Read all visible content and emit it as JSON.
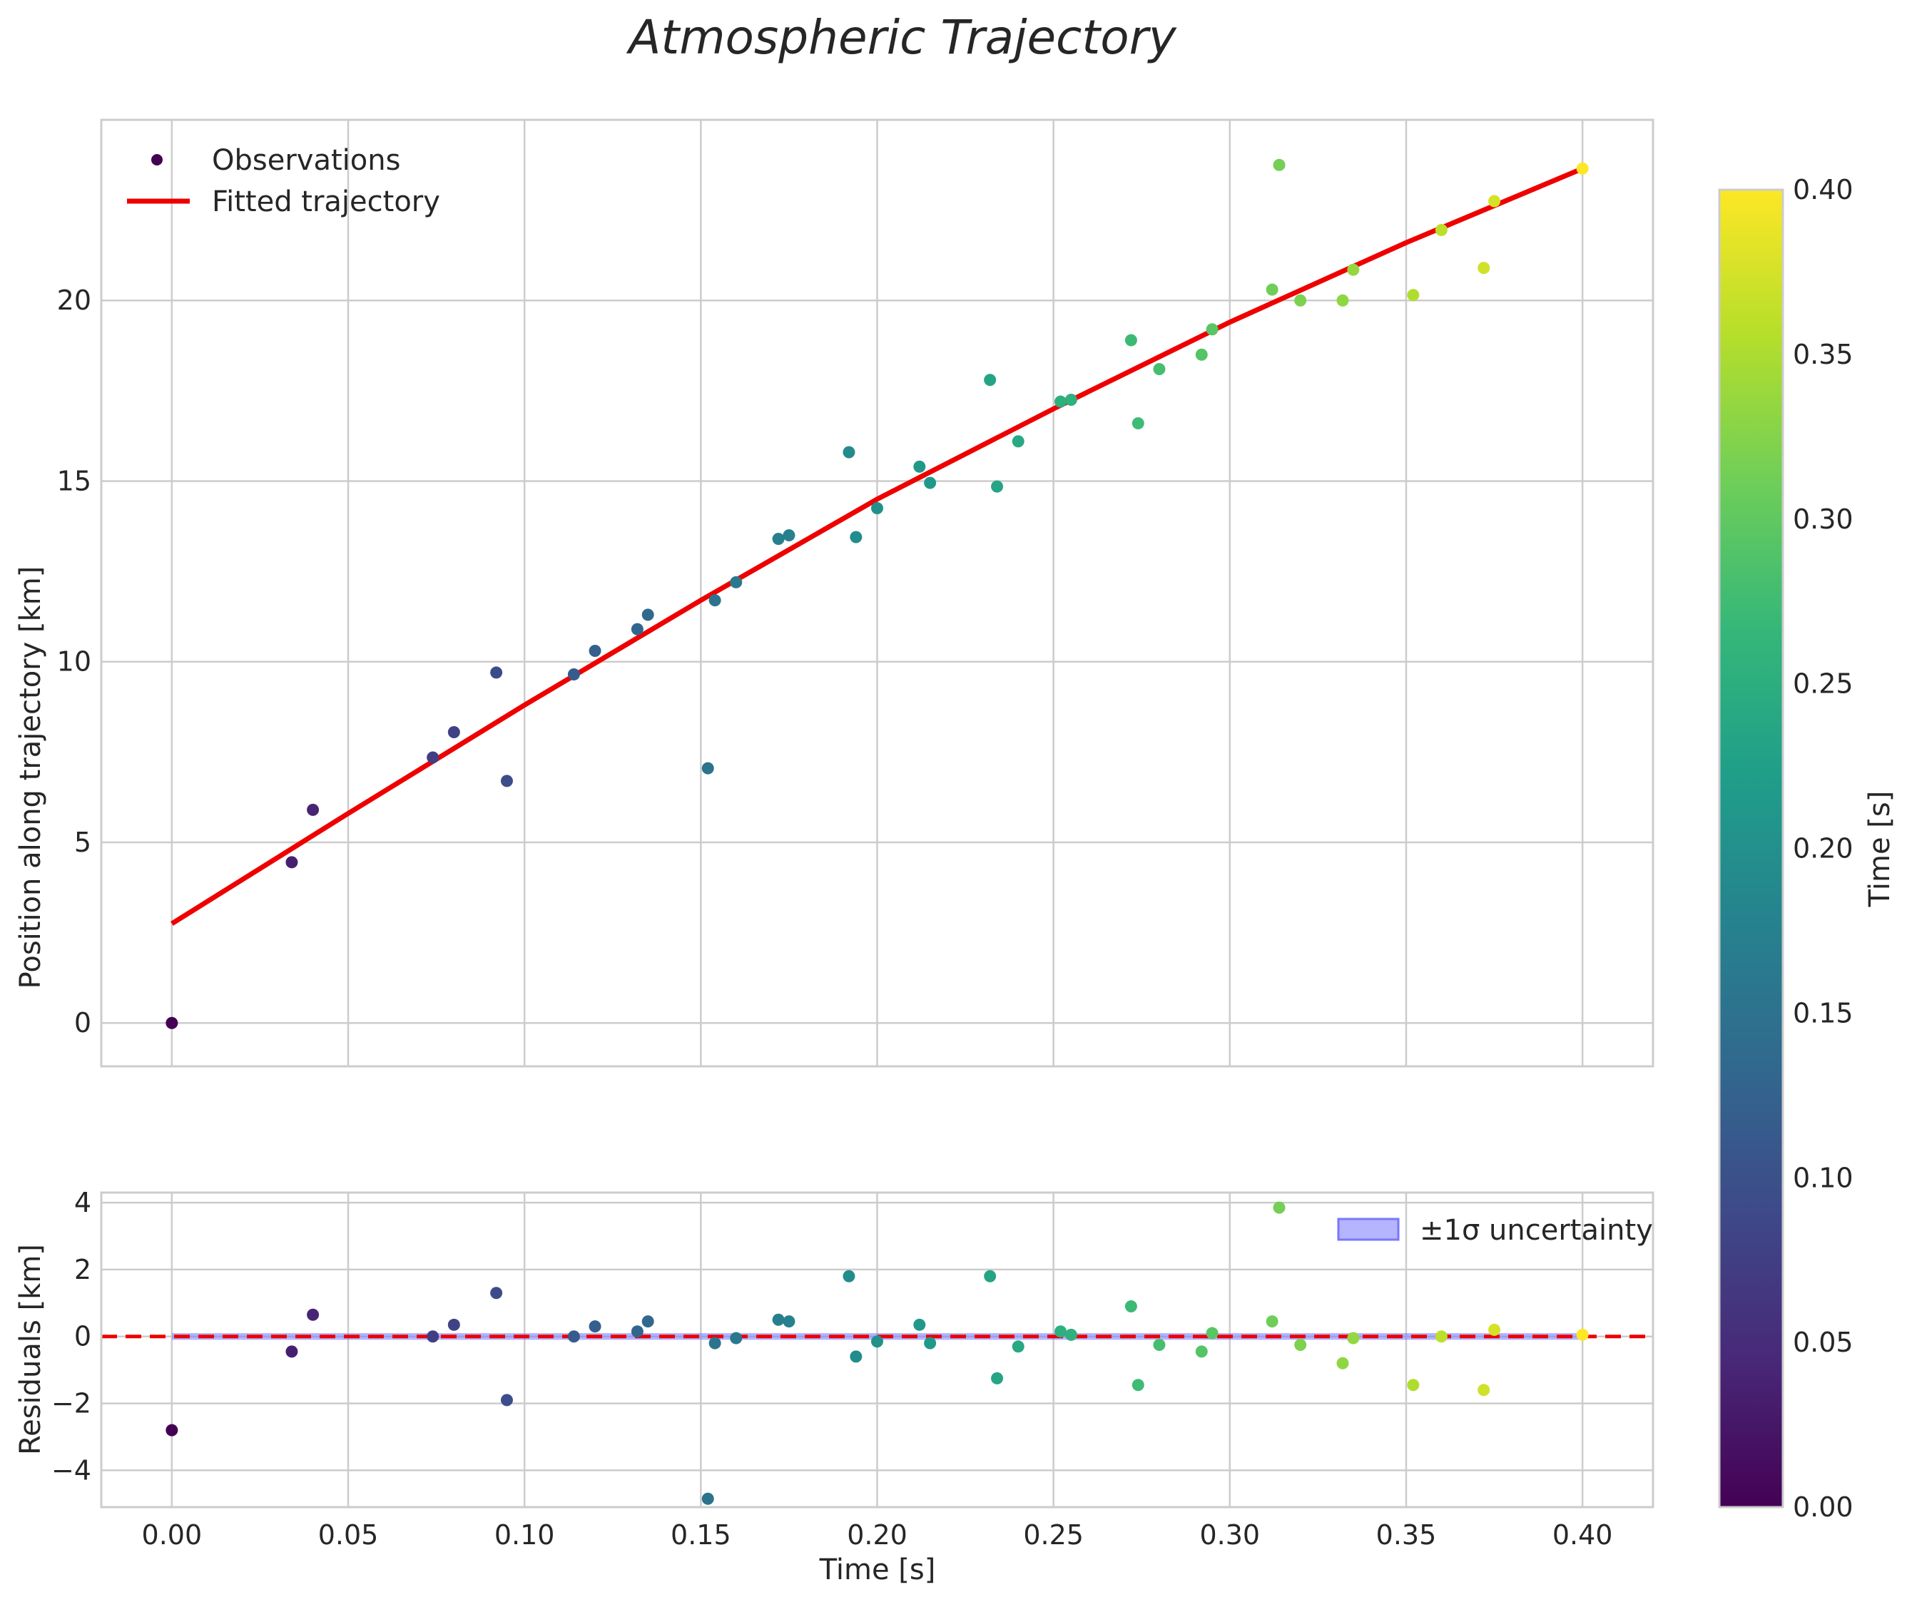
{
  "chart_data": {
    "title": "Atmospheric Trajectory",
    "xlabel": "Time [s]",
    "xlim": [
      -0.02,
      0.42
    ],
    "xticks": [
      0.0,
      0.05,
      0.1,
      0.15,
      0.2,
      0.25,
      0.3,
      0.35,
      0.4
    ],
    "xtick_labels": [
      "0.00",
      "0.05",
      "0.10",
      "0.15",
      "0.20",
      "0.25",
      "0.30",
      "0.35",
      "0.40"
    ],
    "top_panel": {
      "type": "scatter",
      "ylabel": "Position along trajectory [km]",
      "ylim": [
        -1.2,
        25.0
      ],
      "yticks": [
        0,
        5,
        10,
        15,
        20
      ],
      "ytick_labels": [
        "0",
        "5",
        "10",
        "15",
        "20"
      ],
      "legend": {
        "placement": "top-left",
        "observations": "Observations",
        "fit": "Fitted trajectory"
      },
      "fit_color": "#ee0000",
      "fit_line": {
        "x": [
          0.0,
          0.05,
          0.1,
          0.15,
          0.2,
          0.25,
          0.3,
          0.35,
          0.4
        ],
        "y": [
          2.75,
          5.8,
          8.8,
          11.7,
          14.5,
          17.0,
          19.4,
          21.6,
          23.65
        ]
      }
    },
    "bottom_panel": {
      "type": "scatter",
      "ylabel": "Residuals [km]",
      "ylim": [
        -5.1,
        4.3
      ],
      "yticks": [
        -4,
        -2,
        0,
        2,
        4
      ],
      "ytick_labels": [
        "−4",
        "−2",
        "0",
        "2",
        "4"
      ],
      "legend": {
        "placement": "top-right",
        "band": "±1σ uncertainty"
      },
      "zero_line_color": "#ee0000",
      "band_color": "#7777ff",
      "band_halfwidth": 0.1
    },
    "colorbar": {
      "label": "Time [s]",
      "range": [
        0.0,
        0.4
      ],
      "ticks": [
        0.0,
        0.05,
        0.1,
        0.15,
        0.2,
        0.25,
        0.3,
        0.35,
        0.4
      ],
      "tick_labels": [
        "0.00",
        "0.05",
        "0.10",
        "0.15",
        "0.20",
        "0.25",
        "0.30",
        "0.35",
        "0.40"
      ],
      "colormap": "viridis",
      "colormap_stops": [
        "#440154",
        "#482878",
        "#3e4989",
        "#31688e",
        "#26828e",
        "#1f9e89",
        "#35b779",
        "#6ece58",
        "#b5de2b",
        "#fde725"
      ]
    },
    "observations": {
      "t": [
        0.0,
        0.034,
        0.04,
        0.074,
        0.08,
        0.092,
        0.095,
        0.114,
        0.12,
        0.132,
        0.135,
        0.152,
        0.154,
        0.16,
        0.172,
        0.175,
        0.192,
        0.194,
        0.2,
        0.212,
        0.215,
        0.232,
        0.234,
        0.24,
        0.252,
        0.255,
        0.272,
        0.274,
        0.28,
        0.292,
        0.295,
        0.312,
        0.314,
        0.32,
        0.332,
        0.335,
        0.352,
        0.36,
        0.372,
        0.375,
        0.4
      ],
      "position": [
        0.0,
        4.45,
        5.9,
        7.35,
        8.05,
        9.7,
        6.7,
        9.65,
        10.3,
        10.9,
        11.3,
        7.05,
        11.7,
        12.2,
        13.4,
        13.5,
        15.8,
        13.45,
        14.25,
        15.4,
        14.95,
        17.8,
        14.85,
        16.1,
        17.2,
        17.25,
        18.9,
        16.6,
        18.1,
        18.5,
        19.2,
        20.3,
        23.75,
        20.0,
        20.0,
        20.85,
        20.15,
        21.95,
        20.9,
        22.75,
        23.65
      ],
      "residual": [
        -2.8,
        -0.45,
        0.65,
        0.0,
        0.35,
        1.3,
        -1.9,
        0.0,
        0.3,
        0.15,
        0.45,
        -4.85,
        -0.2,
        -0.05,
        0.5,
        0.45,
        1.8,
        -0.6,
        -0.15,
        0.35,
        -0.2,
        1.8,
        -1.25,
        -0.3,
        0.15,
        0.05,
        0.9,
        -1.45,
        -0.25,
        -0.45,
        0.1,
        0.45,
        3.85,
        -0.25,
        -0.8,
        -0.05,
        -1.45,
        0.0,
        -1.6,
        0.2,
        0.05
      ]
    }
  }
}
